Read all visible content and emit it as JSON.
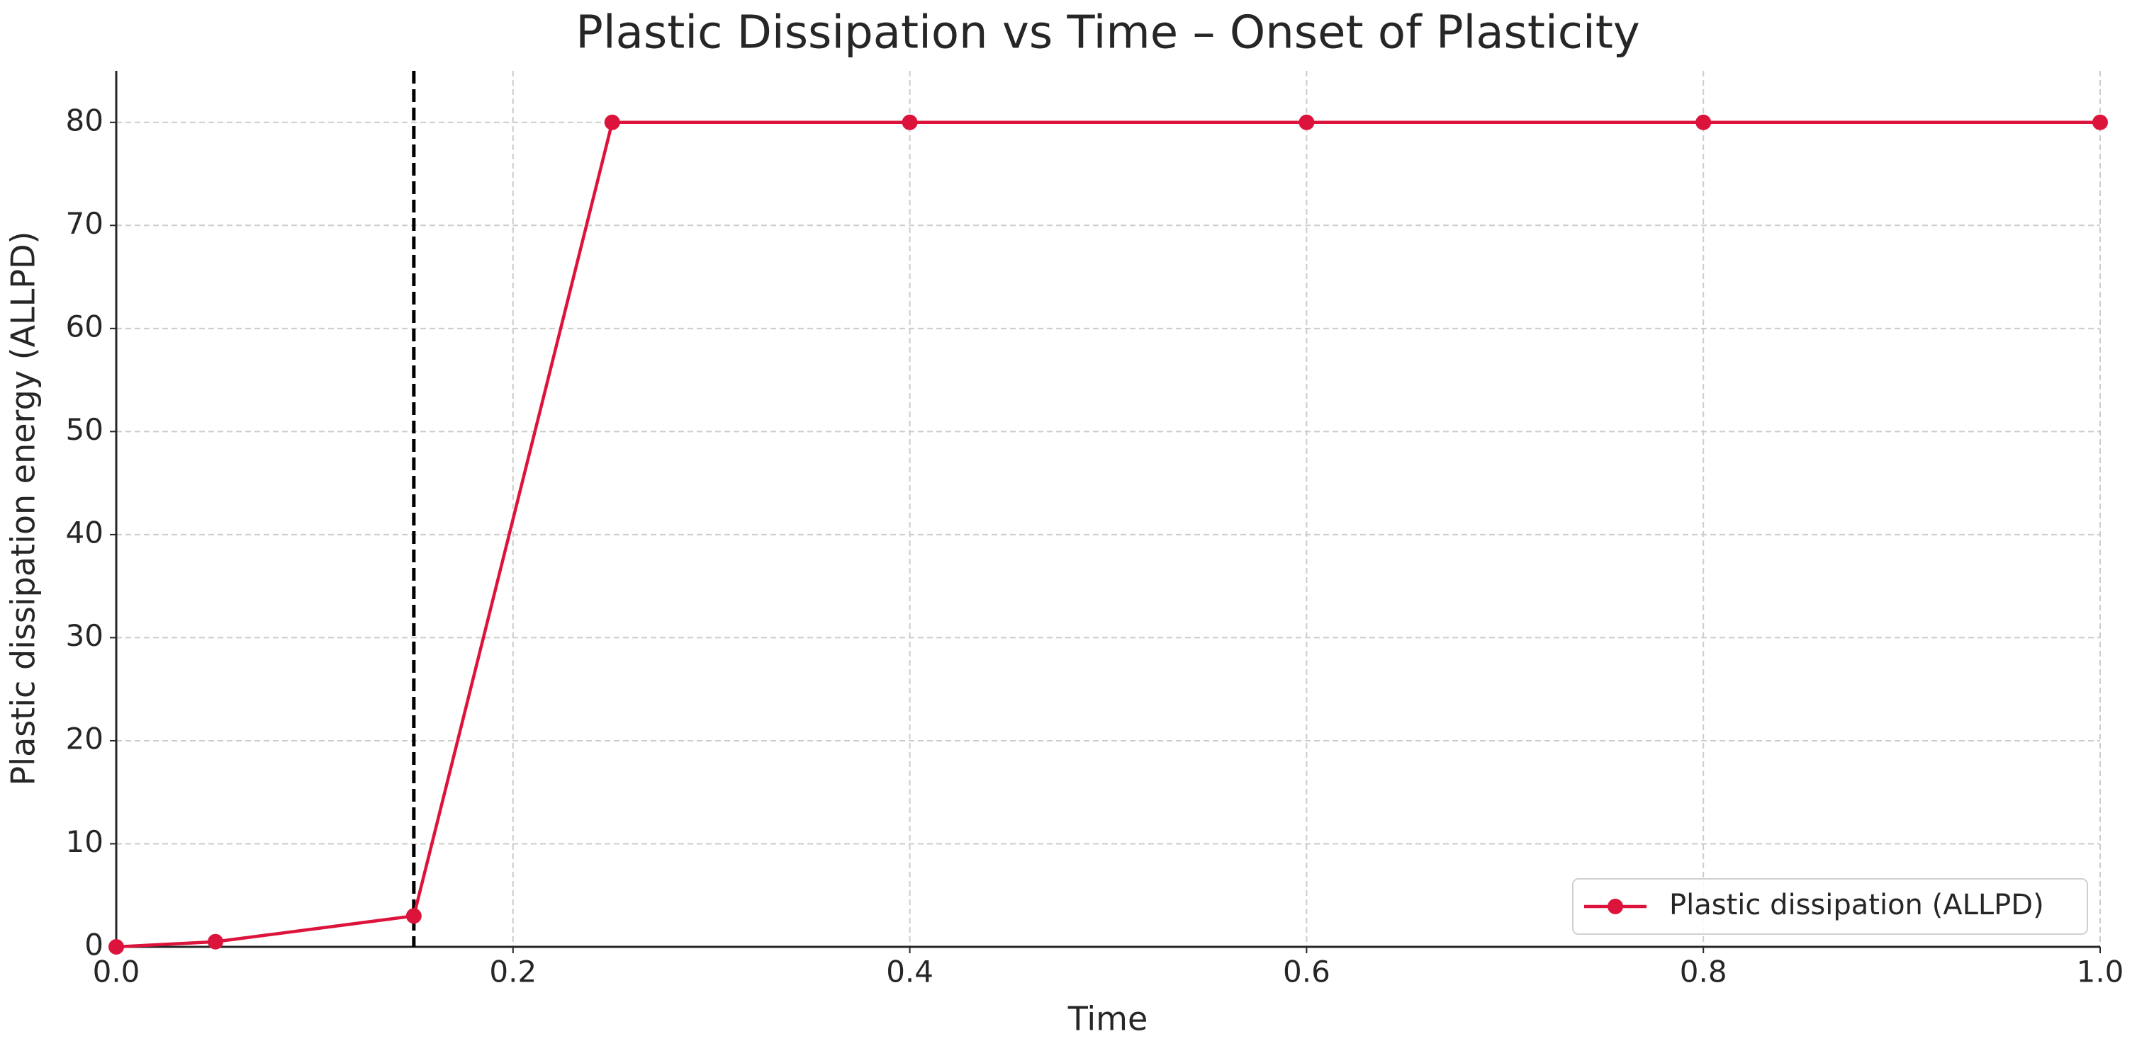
{
  "chart_data": {
    "type": "line",
    "title": "Plastic Dissipation vs Time – Onset of Plasticity",
    "xlabel": "Time",
    "ylabel": "Plastic dissipation energy (ALLPD)",
    "x": [
      0,
      0.05,
      0.15,
      0.25,
      0.4,
      0.6,
      0.8,
      1.0
    ],
    "series": [
      {
        "name": "Plastic dissipation (ALLPD)",
        "color": "#dc143c",
        "values": [
          0,
          0.5,
          3,
          80,
          80,
          80,
          80,
          80
        ]
      }
    ],
    "vline": 0.15,
    "xlim": [
      0,
      1
    ],
    "ylim": [
      0,
      85
    ],
    "xticks": [
      {
        "value": 0,
        "label": "0.0"
      },
      0.2,
      0.4,
      0.6,
      0.8,
      {
        "value": 1,
        "label": "1.0"
      }
    ],
    "yticks": [
      0,
      10,
      20,
      30,
      40,
      50,
      60,
      70,
      80
    ],
    "grid": true,
    "legend": "lower right"
  }
}
